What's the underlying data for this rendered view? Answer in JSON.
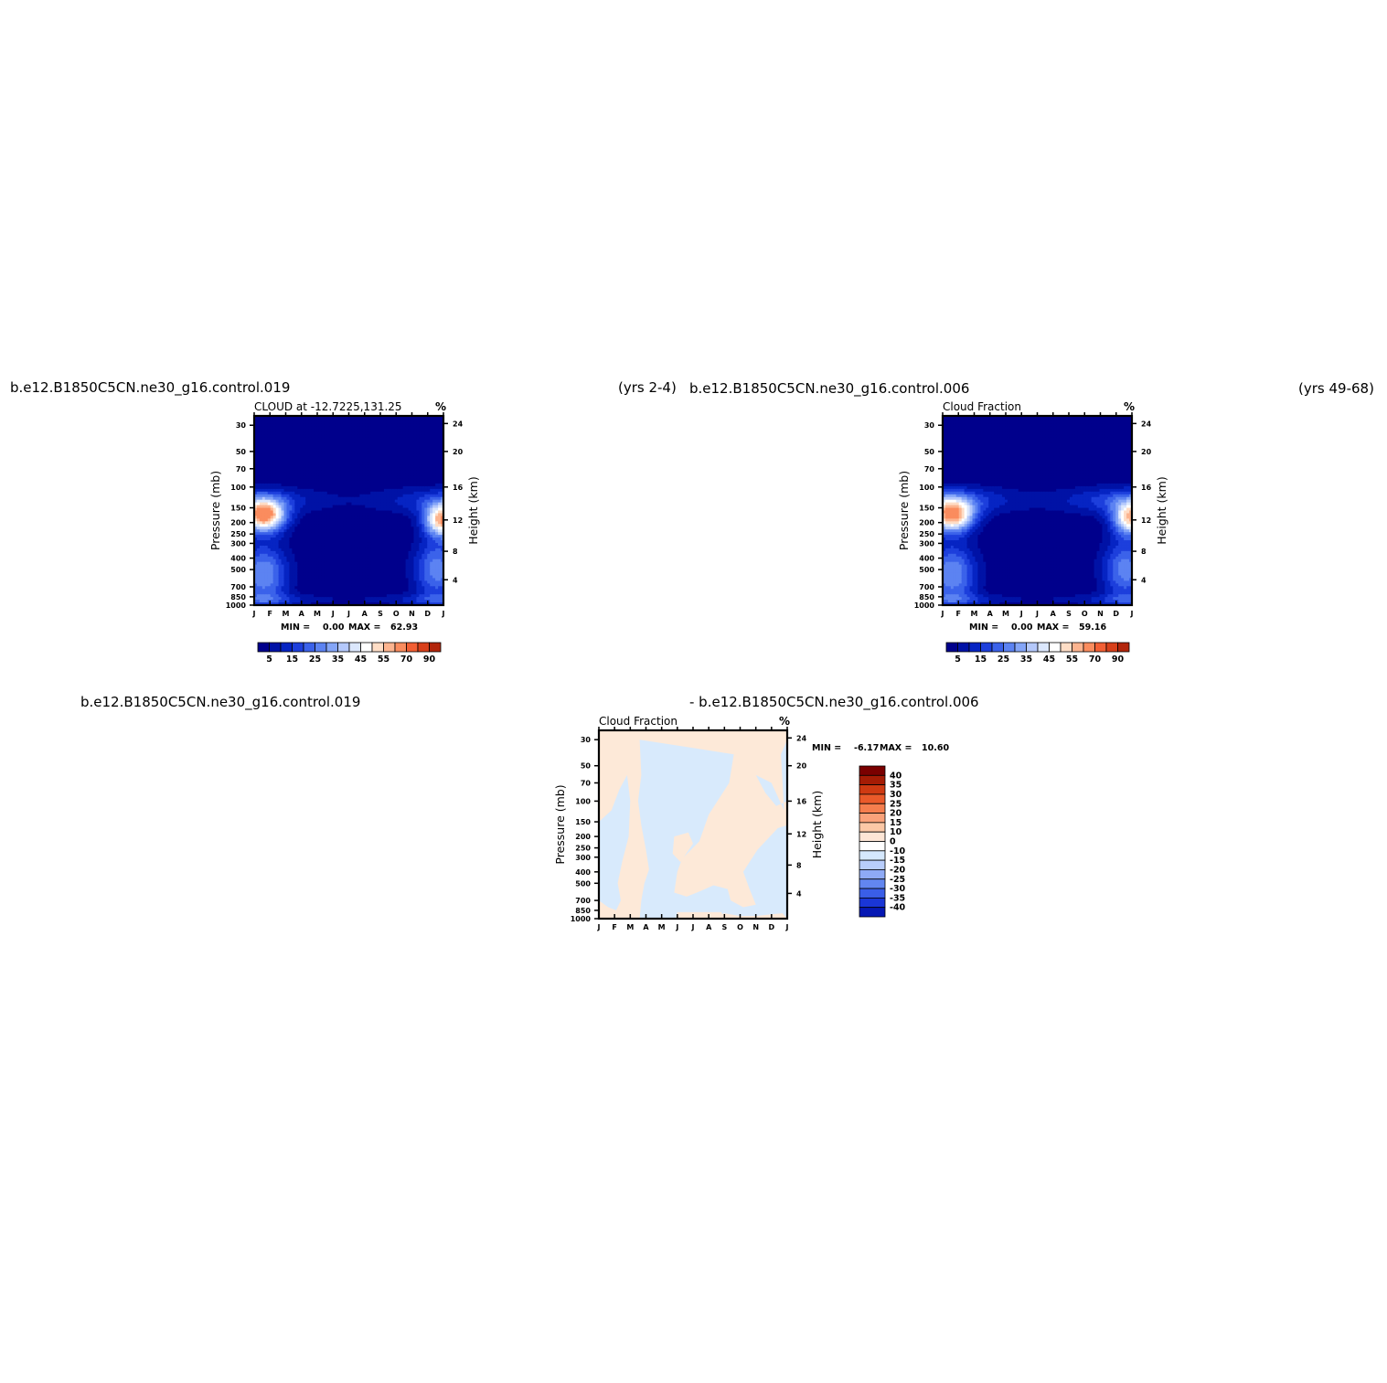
{
  "header": {
    "case1": "b.e12.B1850C5CN.ne30_g16.control.019",
    "case1_years": "(yrs 2-4)",
    "case2": "b.e12.B1850C5CN.ne30_g16.control.006",
    "case2_years": "(yrs 49-68)",
    "diff_case1": "b.e12.B1850C5CN.ne30_g16.control.019",
    "diff_case2": "- b.e12.B1850C5CN.ne30_g16.control.006"
  },
  "colors": {
    "shading_scale": [
      "#00008c",
      "#0012a6",
      "#0624c3",
      "#1d3fdc",
      "#3b62ea",
      "#5c83f2",
      "#84a5f7",
      "#b4c8fb",
      "#dbe7fd",
      "#ffffff",
      "#feddc6",
      "#fcb48f",
      "#fa8c5e",
      "#f25f34",
      "#d8401a",
      "#b2250b",
      "#8a0e04",
      "#6e0000"
    ],
    "diff_scale": [
      "#00008c",
      "#0618b4",
      "#1a36d6",
      "#3a5ee8",
      "#6286f0",
      "#8eaaf6",
      "#b8cdfb",
      "#d5e8fd",
      "#ffffff",
      "#fde6d6",
      "#fcc8a6",
      "#faa27a",
      "#f57e4e",
      "#ea5a2a",
      "#cf3a12",
      "#a51c05",
      "#7a0000"
    ]
  },
  "chart_data": [
    {
      "type": "heatmap",
      "title": "CLOUD at -12.7225,131.25",
      "units": "%",
      "ylabel": "Pressure (mb)",
      "ylabel_right": "Height (km)",
      "x_ticks": [
        "J",
        "F",
        "M",
        "A",
        "M",
        "J",
        "J",
        "A",
        "S",
        "O",
        "N",
        "D",
        "J"
      ],
      "y_ticks": [
        30,
        50,
        70,
        100,
        150,
        200,
        250,
        300,
        400,
        500,
        700,
        850,
        1000
      ],
      "y_ticks_right": [
        24,
        20,
        16,
        12,
        8,
        4
      ],
      "ylim": [
        1000,
        25
      ],
      "y_scale": "log",
      "min_label": "MIN =",
      "min": "0.00",
      "max_label": "MAX =",
      "max": "62.93",
      "colorbar_labels": [
        "5",
        "15",
        "25",
        "35",
        "45",
        "55",
        "70",
        "90"
      ],
      "colorbar_levels": [
        5,
        10,
        15,
        20,
        25,
        30,
        35,
        40,
        45,
        50,
        55,
        60,
        70,
        80,
        90
      ],
      "fields": {
        "hotspots": [
          {
            "month": 0.6,
            "pressure": 175,
            "peak": 62.9,
            "sx": 1.4,
            "sy": 0.32
          },
          {
            "month": 12.0,
            "pressure": 190,
            "peak": 58.0,
            "sx": 1.2,
            "sy": 0.32
          }
        ],
        "lower_cloud": [
          {
            "month": 0.6,
            "pressure": 550,
            "peak": 30,
            "sx": 1.6,
            "sy": 0.6
          },
          {
            "month": 11.6,
            "pressure": 500,
            "peak": 28,
            "sx": 1.5,
            "sy": 0.6
          }
        ],
        "cirrus_band": {
          "pressure": 130,
          "peak": 15
        }
      }
    },
    {
      "type": "heatmap",
      "title": "Cloud Fraction",
      "units": "%",
      "ylabel": "Pressure (mb)",
      "ylabel_right": "Height (km)",
      "x_ticks": [
        "J",
        "F",
        "M",
        "A",
        "M",
        "J",
        "J",
        "A",
        "S",
        "O",
        "N",
        "D",
        "J"
      ],
      "y_ticks": [
        30,
        50,
        70,
        100,
        150,
        200,
        250,
        300,
        400,
        500,
        700,
        850,
        1000
      ],
      "y_ticks_right": [
        24,
        20,
        16,
        12,
        8,
        4
      ],
      "ylim": [
        1000,
        25
      ],
      "y_scale": "log",
      "min_label": "MIN =",
      "min": "0.00",
      "max_label": "MAX =",
      "max": "59.16",
      "colorbar_labels": [
        "5",
        "15",
        "25",
        "35",
        "45",
        "55",
        "70",
        "90"
      ],
      "colorbar_levels": [
        5,
        10,
        15,
        20,
        25,
        30,
        35,
        40,
        45,
        50,
        55,
        60,
        70,
        80,
        90
      ],
      "fields": {
        "hotspots": [
          {
            "month": 0.6,
            "pressure": 175,
            "peak": 59.2,
            "sx": 1.4,
            "sy": 0.32
          },
          {
            "month": 12.0,
            "pressure": 185,
            "peak": 52.0,
            "sx": 1.2,
            "sy": 0.32
          }
        ],
        "lower_cloud": [
          {
            "month": 0.6,
            "pressure": 550,
            "peak": 30,
            "sx": 1.6,
            "sy": 0.6
          },
          {
            "month": 11.6,
            "pressure": 500,
            "peak": 28,
            "sx": 1.5,
            "sy": 0.6
          }
        ],
        "cirrus_band": {
          "pressure": 130,
          "peak": 20
        }
      }
    },
    {
      "type": "heatmap",
      "title": "Cloud Fraction",
      "units": "%",
      "ylabel": "Pressure (mb)",
      "ylabel_right": "Height (km)",
      "x_ticks": [
        "J",
        "F",
        "M",
        "A",
        "M",
        "J",
        "J",
        "A",
        "S",
        "O",
        "N",
        "D",
        "J"
      ],
      "y_ticks": [
        30,
        50,
        70,
        100,
        150,
        200,
        250,
        300,
        400,
        500,
        700,
        850,
        1000
      ],
      "y_ticks_right": [
        24,
        20,
        16,
        12,
        8,
        4
      ],
      "ylim": [
        1000,
        25
      ],
      "y_scale": "log",
      "min_label": "MIN =",
      "min": "-6.17",
      "max_label": "MAX =",
      "max": "10.60",
      "colorbar_labels": [
        "40",
        "35",
        "30",
        "25",
        "20",
        "15",
        "10",
        "0",
        "-10",
        "-15",
        "-20",
        "-25",
        "-30",
        "-35",
        "-40"
      ],
      "colorbar_levels": [
        -40,
        -35,
        -30,
        -25,
        -20,
        -15,
        -10,
        0,
        10,
        15,
        20,
        25,
        30,
        35,
        40
      ]
    }
  ]
}
